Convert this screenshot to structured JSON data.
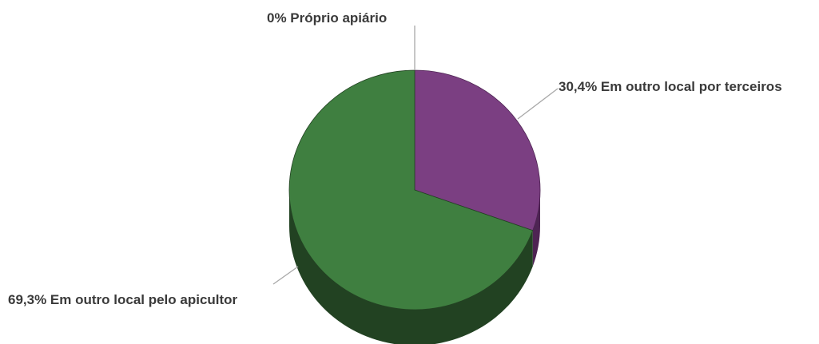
{
  "chart_data": {
    "type": "pie",
    "style": "3d",
    "slices": [
      {
        "label": "Próprio apiário",
        "value": 0,
        "value_text": "0%",
        "color": "#9a9a9a",
        "side_color": "#6a6a6a"
      },
      {
        "label": "Em outro local por terceiros",
        "value": 30.4,
        "value_text": "30,4%",
        "color": "#7b3f82",
        "side_color": "#4e2453"
      },
      {
        "label": "Em outro local pelo apicultor",
        "value": 69.3,
        "value_text": "69,3%",
        "color": "#3f7f40",
        "side_color": "#224222"
      }
    ],
    "labels": {
      "proprio": "0% Próprio apiário",
      "terceiros": "30,4% Em outro local por terceiros",
      "apicultor": "69,3% Em outro local pelo apicultor"
    }
  }
}
